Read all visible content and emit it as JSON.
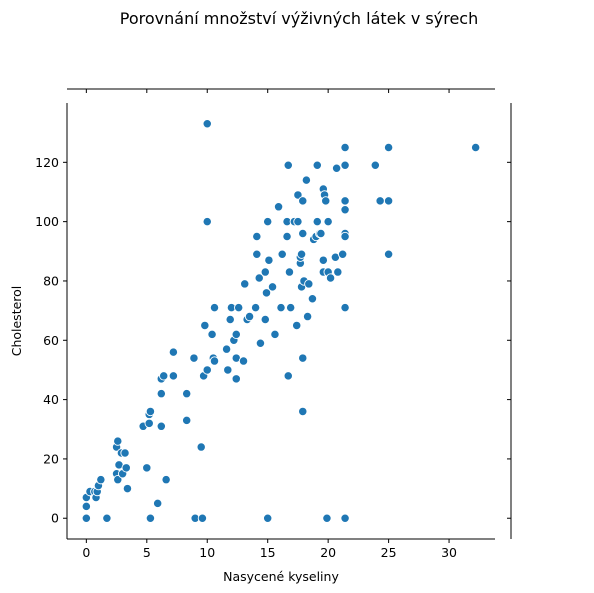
{
  "chart_data": {
    "type": "scatter",
    "title": "Porovnání množství výživných látek v sýrech",
    "xlabel": "Nasycené kyseliny",
    "ylabel": "Cholesterol",
    "xlim": [
      -1.6,
      33.8
    ],
    "ylim": [
      -7,
      140
    ],
    "xticks": [
      0,
      5,
      10,
      15,
      20,
      25,
      30
    ],
    "yticks": [
      0,
      20,
      40,
      60,
      80,
      100,
      120
    ],
    "grid": false,
    "colors": {
      "point": "#1f77b4",
      "point_edge": "#ffffff",
      "spine": "#000000"
    },
    "points": [
      [
        0,
        0
      ],
      [
        0,
        4
      ],
      [
        0,
        7
      ],
      [
        0.3,
        9
      ],
      [
        0.7,
        9
      ],
      [
        0.8,
        7
      ],
      [
        0.9,
        9
      ],
      [
        1,
        11
      ],
      [
        1.2,
        13
      ],
      [
        1.7,
        0
      ],
      [
        2.5,
        15
      ],
      [
        2.6,
        13
      ],
      [
        2.5,
        24
      ],
      [
        2.6,
        26
      ],
      [
        2.7,
        18
      ],
      [
        2.9,
        22
      ],
      [
        3,
        15
      ],
      [
        3.2,
        22
      ],
      [
        3.3,
        17
      ],
      [
        3.4,
        10
      ],
      [
        4.7,
        31
      ],
      [
        5,
        17
      ],
      [
        5.2,
        32
      ],
      [
        5.2,
        35
      ],
      [
        5.3,
        36
      ],
      [
        5.3,
        0
      ],
      [
        5.9,
        5
      ],
      [
        6.2,
        31
      ],
      [
        6.2,
        42
      ],
      [
        6.2,
        47
      ],
      [
        6.4,
        48
      ],
      [
        6.6,
        13
      ],
      [
        7.2,
        48
      ],
      [
        7.2,
        56
      ],
      [
        8.3,
        42
      ],
      [
        8.3,
        33
      ],
      [
        8.9,
        54
      ],
      [
        9,
        0
      ],
      [
        9.5,
        24
      ],
      [
        9.6,
        0
      ],
      [
        9.7,
        48
      ],
      [
        9.8,
        65
      ],
      [
        10,
        50
      ],
      [
        10,
        133
      ],
      [
        10,
        100
      ],
      [
        10.4,
        62
      ],
      [
        10.5,
        54
      ],
      [
        10.6,
        71
      ],
      [
        10.6,
        53
      ],
      [
        11.6,
        57
      ],
      [
        11.7,
        50
      ],
      [
        11.9,
        67
      ],
      [
        12,
        71
      ],
      [
        12.2,
        60
      ],
      [
        12.4,
        62
      ],
      [
        12.4,
        54
      ],
      [
        12.4,
        47
      ],
      [
        12.6,
        71
      ],
      [
        13,
        53
      ],
      [
        13.1,
        79
      ],
      [
        13.3,
        67
      ],
      [
        13.5,
        68
      ],
      [
        14,
        71
      ],
      [
        14.1,
        89
      ],
      [
        14.1,
        95
      ],
      [
        14.3,
        81
      ],
      [
        14.4,
        59
      ],
      [
        14.8,
        67
      ],
      [
        14.8,
        83
      ],
      [
        14.9,
        76
      ],
      [
        15,
        100
      ],
      [
        15,
        0
      ],
      [
        15.1,
        87
      ],
      [
        15.4,
        78
      ],
      [
        15.6,
        62
      ],
      [
        15.9,
        105
      ],
      [
        16.1,
        71
      ],
      [
        16.2,
        89
      ],
      [
        16.6,
        95
      ],
      [
        16.6,
        100
      ],
      [
        16.7,
        48
      ],
      [
        16.7,
        119
      ],
      [
        16.8,
        83
      ],
      [
        16.9,
        71
      ],
      [
        17.2,
        100
      ],
      [
        17.4,
        65
      ],
      [
        17.5,
        109
      ],
      [
        17.5,
        100
      ],
      [
        17.7,
        86
      ],
      [
        17.7,
        88
      ],
      [
        17.8,
        78
      ],
      [
        17.8,
        89
      ],
      [
        17.9,
        54
      ],
      [
        17.9,
        36
      ],
      [
        17.9,
        96
      ],
      [
        17.9,
        107
      ],
      [
        18,
        80
      ],
      [
        18.2,
        114
      ],
      [
        18.3,
        68
      ],
      [
        18.4,
        79
      ],
      [
        18.7,
        74
      ],
      [
        18.8,
        94
      ],
      [
        19,
        95
      ],
      [
        19.1,
        100
      ],
      [
        19.1,
        119
      ],
      [
        19.3,
        96
      ],
      [
        19.4,
        96
      ],
      [
        19.6,
        87
      ],
      [
        19.6,
        111
      ],
      [
        19.6,
        83
      ],
      [
        19.7,
        109
      ],
      [
        19.8,
        107
      ],
      [
        19.9,
        0
      ],
      [
        20,
        83
      ],
      [
        20,
        100
      ],
      [
        20.2,
        81
      ],
      [
        20.6,
        88
      ],
      [
        20.7,
        118
      ],
      [
        20.8,
        83
      ],
      [
        21.2,
        89
      ],
      [
        21.4,
        71
      ],
      [
        21.4,
        0
      ],
      [
        21.4,
        96
      ],
      [
        21.4,
        95
      ],
      [
        21.4,
        104
      ],
      [
        21.4,
        107
      ],
      [
        21.4,
        119
      ],
      [
        21.4,
        125
      ],
      [
        23.9,
        119
      ],
      [
        24.3,
        107
      ],
      [
        25,
        125
      ],
      [
        25,
        107
      ],
      [
        25,
        89
      ],
      [
        32.2,
        125
      ]
    ]
  }
}
